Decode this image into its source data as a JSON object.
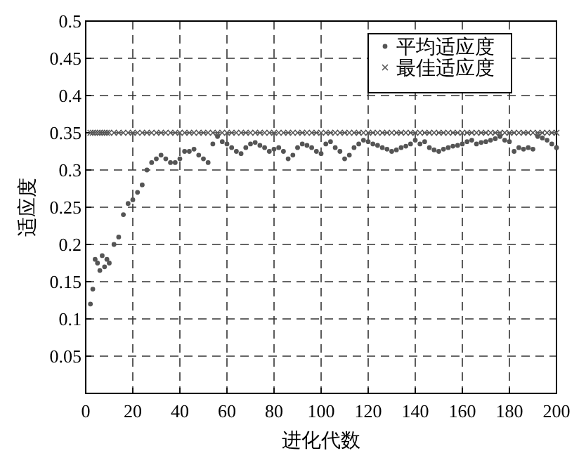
{
  "chart_data": {
    "type": "scatter",
    "xlabel": "进化代数",
    "ylabel": "适应度",
    "x": [
      2,
      3,
      4,
      5,
      6,
      7,
      8,
      9,
      10,
      12,
      14,
      16,
      18,
      20,
      22,
      24,
      26,
      28,
      30,
      32,
      34,
      36,
      38,
      40,
      42,
      44,
      46,
      48,
      50,
      52,
      54,
      56,
      58,
      60,
      62,
      64,
      66,
      68,
      70,
      72,
      74,
      76,
      78,
      80,
      82,
      84,
      86,
      88,
      90,
      92,
      94,
      96,
      98,
      100,
      102,
      104,
      106,
      108,
      110,
      112,
      114,
      116,
      118,
      120,
      122,
      124,
      126,
      128,
      130,
      132,
      134,
      136,
      138,
      140,
      142,
      144,
      146,
      148,
      150,
      152,
      154,
      156,
      158,
      160,
      162,
      164,
      166,
      168,
      170,
      172,
      174,
      176,
      178,
      180,
      182,
      184,
      186,
      188,
      190,
      192,
      194,
      196,
      198,
      200
    ],
    "series": [
      {
        "name": "平均适应度",
        "color": "#555555",
        "marker": "circle",
        "values": [
          0.12,
          0.14,
          0.18,
          0.175,
          0.165,
          0.185,
          0.17,
          0.18,
          0.175,
          0.2,
          0.21,
          0.24,
          0.255,
          0.26,
          0.27,
          0.28,
          0.3,
          0.31,
          0.315,
          0.32,
          0.315,
          0.31,
          0.31,
          0.315,
          0.325,
          0.325,
          0.328,
          0.32,
          0.315,
          0.31,
          0.335,
          0.345,
          0.338,
          0.335,
          0.33,
          0.325,
          0.322,
          0.33,
          0.335,
          0.337,
          0.333,
          0.33,
          0.325,
          0.328,
          0.33,
          0.325,
          0.315,
          0.32,
          0.33,
          0.335,
          0.333,
          0.33,
          0.325,
          0.322,
          0.335,
          0.338,
          0.33,
          0.325,
          0.315,
          0.32,
          0.33,
          0.335,
          0.34,
          0.338,
          0.335,
          0.333,
          0.33,
          0.328,
          0.325,
          0.327,
          0.33,
          0.332,
          0.335,
          0.34,
          0.335,
          0.338,
          0.33,
          0.327,
          0.325,
          0.328,
          0.33,
          0.332,
          0.333,
          0.335,
          0.338,
          0.34,
          0.335,
          0.337,
          0.338,
          0.34,
          0.342,
          0.345,
          0.34,
          0.338,
          0.325,
          0.33,
          0.328,
          0.33,
          0.328,
          0.345,
          0.343,
          0.34,
          0.335,
          0.33
        ]
      },
      {
        "name": "最佳适应度",
        "color": "#555555",
        "marker": "cross",
        "values": [
          0.35,
          0.35,
          0.35,
          0.35,
          0.35,
          0.35,
          0.35,
          0.35,
          0.35,
          0.35,
          0.35,
          0.35,
          0.35,
          0.35,
          0.35,
          0.35,
          0.35,
          0.35,
          0.35,
          0.35,
          0.35,
          0.35,
          0.35,
          0.35,
          0.35,
          0.35,
          0.35,
          0.35,
          0.35,
          0.35,
          0.35,
          0.35,
          0.35,
          0.35,
          0.35,
          0.35,
          0.35,
          0.35,
          0.35,
          0.35,
          0.35,
          0.35,
          0.35,
          0.35,
          0.35,
          0.35,
          0.35,
          0.35,
          0.35,
          0.35,
          0.35,
          0.35,
          0.35,
          0.35,
          0.35,
          0.35,
          0.35,
          0.35,
          0.35,
          0.35,
          0.35,
          0.35,
          0.35,
          0.35,
          0.35,
          0.35,
          0.35,
          0.35,
          0.35,
          0.35,
          0.35,
          0.35,
          0.35,
          0.35,
          0.35,
          0.35,
          0.35,
          0.35,
          0.35,
          0.35,
          0.35,
          0.35,
          0.35,
          0.35,
          0.35,
          0.35,
          0.35,
          0.35,
          0.35,
          0.35,
          0.35,
          0.35,
          0.35,
          0.35,
          0.35,
          0.35,
          0.35,
          0.35,
          0.35,
          0.35,
          0.35,
          0.35,
          0.35,
          0.35
        ]
      }
    ],
    "xlim": [
      0,
      200
    ],
    "xticks": [
      0,
      20,
      40,
      60,
      80,
      100,
      120,
      140,
      160,
      180,
      200
    ],
    "ylim": [
      0,
      0.5
    ],
    "yticks": [
      0.05,
      0.1,
      0.15,
      0.2,
      0.25,
      0.3,
      0.35,
      0.4,
      0.45,
      0.5
    ],
    "grid": true,
    "legend": "top right"
  }
}
